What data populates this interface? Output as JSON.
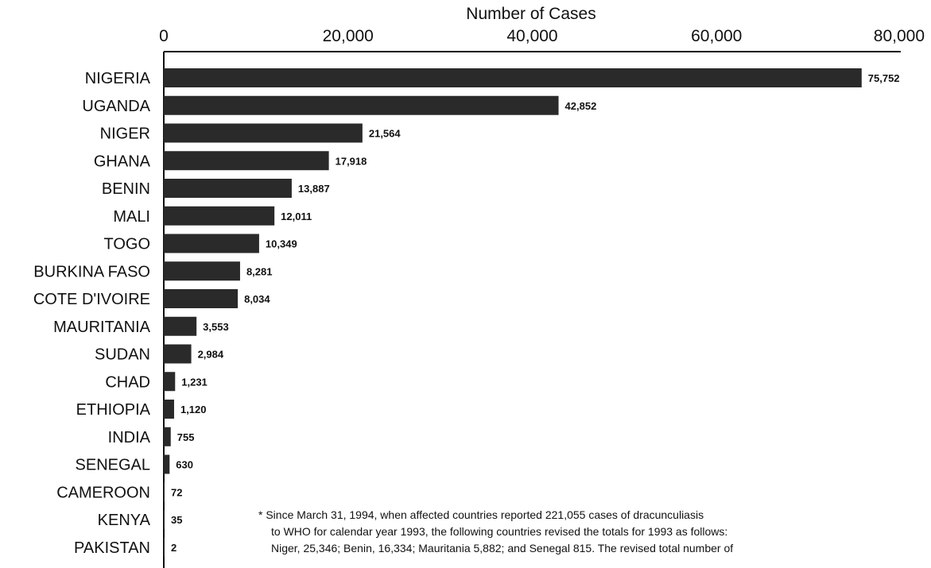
{
  "chart_data": {
    "type": "bar",
    "orientation": "horizontal",
    "xlabel": "Number of Cases",
    "xlim": [
      0,
      80000
    ],
    "xticks": [
      0,
      20000,
      40000,
      60000,
      80000
    ],
    "xtick_labels": [
      "0",
      "20,000",
      "40,000",
      "60,000",
      "80,000"
    ],
    "categories": [
      "NIGERIA",
      "UGANDA",
      "NIGER",
      "GHANA",
      "BENIN",
      "MALI",
      "TOGO",
      "BURKINA FASO",
      "COTE D'IVOIRE",
      "MAURITANIA",
      "SUDAN",
      "CHAD",
      "ETHIOPIA",
      "INDIA",
      "SENEGAL",
      "CAMEROON",
      "KENYA",
      "PAKISTAN"
    ],
    "values": [
      75752,
      42852,
      21564,
      17918,
      13887,
      12011,
      10349,
      8281,
      8034,
      3553,
      2984,
      1231,
      1120,
      755,
      630,
      72,
      35,
      2
    ],
    "value_labels": [
      "75,752",
      "42,852",
      "21,564",
      "17,918",
      "13,887",
      "12,011",
      "10,349",
      "8,281",
      "8,034",
      "3,553",
      "2,984",
      "1,231",
      "1,120",
      "755",
      "630",
      "72",
      "35",
      "2"
    ],
    "bar_color": "#2a2a2a",
    "grid": false
  },
  "footnote": {
    "lines": [
      "* Since March 31, 1994, when affected countries reported 221,055 cases of dracunculiasis",
      "to WHO for calendar year 1993, the following countries revised the totals for 1993 as follows:",
      "Niger, 25,346; Benin, 16,334; Mauritania 5,882; and Senegal 815. The revised total number of"
    ]
  }
}
